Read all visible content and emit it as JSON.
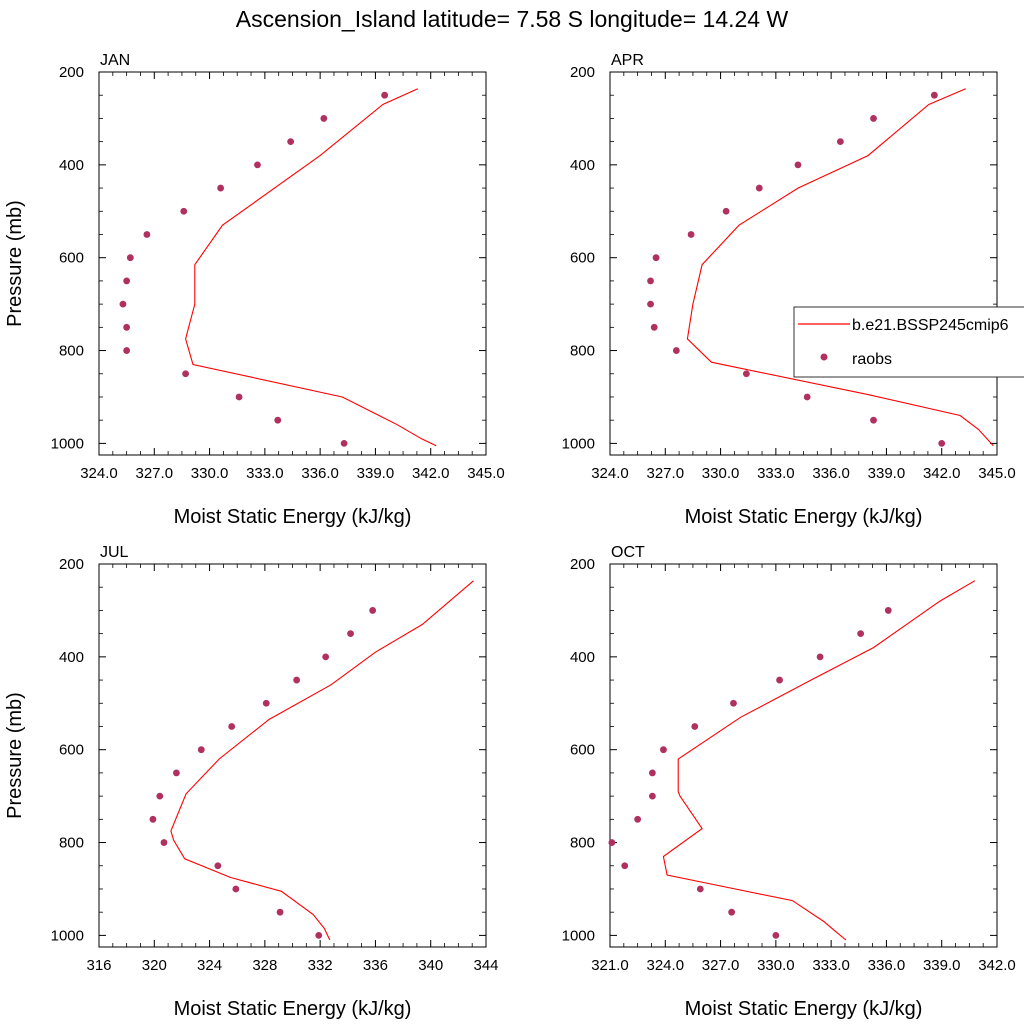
{
  "title": "Ascension_Island  latitude= 7.58 S longitude= 14.24 W",
  "colors": {
    "model": "#ff0000",
    "raobs": "#b03060",
    "axis": "#000000"
  },
  "legend": {
    "entries": [
      "b.e21.BSSP245cmip6",
      "raobs"
    ],
    "placement": "right, beside APR panel"
  },
  "chart_data": [
    {
      "type": "line",
      "panel": "JAN",
      "xlabel": "Moist Static Energy (kJ/kg)",
      "ylabel": "Pressure (mb)",
      "xlim": [
        324,
        345
      ],
      "ylim": [
        1025,
        200
      ],
      "xticks": [
        324,
        327,
        330,
        333,
        336,
        339,
        342,
        345
      ],
      "xtick_labels": [
        "324.0",
        "327.0",
        "330.0",
        "333.0",
        "336.0",
        "339.0",
        "342.0",
        "345.0"
      ],
      "yticks": [
        200,
        400,
        600,
        800,
        1000
      ],
      "series": [
        {
          "name": "b.e21.BSSP245cmip6",
          "kind": "line",
          "x": [
            341.3,
            339.4,
            336.0,
            330.7,
            329.2,
            329.2,
            328.7,
            329.1,
            337.2,
            340.2,
            341.5,
            342.3
          ],
          "y": [
            236,
            270,
            380,
            530,
            615,
            700,
            775,
            830,
            900,
            960,
            990,
            1005
          ]
        },
        {
          "name": "raobs",
          "kind": "scatter",
          "x": [
            339.5,
            336.2,
            334.4,
            332.6,
            330.6,
            328.6,
            326.6,
            325.7,
            325.5,
            325.3,
            325.5,
            325.5,
            328.7,
            331.6,
            333.7,
            337.3
          ],
          "y": [
            250,
            300,
            350,
            400,
            450,
            500,
            550,
            600,
            650,
            700,
            750,
            800,
            850,
            900,
            950,
            1000
          ]
        }
      ]
    },
    {
      "type": "line",
      "panel": "APR",
      "xlabel": "Moist Static Energy (kJ/kg)",
      "ylabel": "",
      "xlim": [
        324,
        345
      ],
      "ylim": [
        1025,
        200
      ],
      "xticks": [
        324,
        327,
        330,
        333,
        336,
        339,
        342,
        345
      ],
      "xtick_labels": [
        "324.0",
        "327.0",
        "330.0",
        "333.0",
        "336.0",
        "339.0",
        "342.0",
        "345.0"
      ],
      "yticks": [
        200,
        400,
        600,
        800,
        1000
      ],
      "series": [
        {
          "name": "b.e21.BSSP245cmip6",
          "kind": "line",
          "x": [
            343.3,
            341.3,
            338.0,
            334.2,
            331.0,
            329.0,
            328.5,
            328.2,
            329.5,
            338.0,
            343.0,
            344.0,
            344.8
          ],
          "y": [
            236,
            270,
            380,
            450,
            530,
            615,
            700,
            775,
            825,
            895,
            940,
            970,
            1005
          ]
        },
        {
          "name": "raobs",
          "kind": "scatter",
          "x": [
            341.6,
            338.3,
            336.5,
            334.2,
            332.1,
            330.3,
            328.4,
            326.5,
            326.2,
            326.2,
            326.4,
            327.6,
            331.4,
            334.7,
            338.3,
            342.0
          ],
          "y": [
            250,
            300,
            350,
            400,
            450,
            500,
            550,
            600,
            650,
            700,
            750,
            800,
            850,
            900,
            950,
            1000
          ]
        }
      ]
    },
    {
      "type": "line",
      "panel": "JUL",
      "xlabel": "Moist Static Energy (kJ/kg)",
      "ylabel": "Pressure (mb)",
      "xlim": [
        316,
        344
      ],
      "ylim": [
        1025,
        200
      ],
      "xticks": [
        316,
        320,
        324,
        328,
        332,
        336,
        340,
        344
      ],
      "xtick_labels": [
        "316",
        "320",
        "324",
        "328",
        "332",
        "336",
        "340",
        "344"
      ],
      "yticks": [
        200,
        400,
        600,
        800,
        1000
      ],
      "series": [
        {
          "name": "b.e21.BSSP245cmip6",
          "kind": "line",
          "x": [
            343.1,
            339.4,
            336.0,
            332.8,
            328.3,
            324.7,
            322.3,
            321.2,
            321.4,
            322.2,
            325.5,
            329.2,
            331.5,
            332.3,
            332.7
          ],
          "y": [
            236,
            330,
            390,
            460,
            535,
            620,
            695,
            775,
            795,
            835,
            875,
            905,
            955,
            985,
            1010
          ]
        },
        {
          "name": "raobs",
          "kind": "scatter",
          "x": [
            335.8,
            334.2,
            332.4,
            330.3,
            328.1,
            325.6,
            323.4,
            321.6,
            320.4,
            319.9,
            320.7,
            324.6,
            325.9,
            329.1,
            331.9
          ],
          "y": [
            300,
            350,
            400,
            450,
            500,
            550,
            600,
            650,
            700,
            750,
            800,
            850,
            900,
            950,
            1000
          ]
        }
      ]
    },
    {
      "type": "line",
      "panel": "OCT",
      "xlabel": "Moist Static Energy (kJ/kg)",
      "ylabel": "",
      "xlim": [
        321,
        342
      ],
      "ylim": [
        1025,
        200
      ],
      "xticks": [
        321,
        324,
        327,
        330,
        333,
        336,
        339,
        342
      ],
      "xtick_labels": [
        "321.0",
        "324.0",
        "327.0",
        "330.0",
        "333.0",
        "336.0",
        "339.0",
        "342.0"
      ],
      "yticks": [
        200,
        400,
        600,
        800,
        1000
      ],
      "series": [
        {
          "name": "b.e21.BSSP245cmip6",
          "kind": "line",
          "x": [
            340.8,
            338.9,
            335.3,
            331.9,
            328.1,
            324.7,
            324.7,
            324.8,
            326.0,
            323.9,
            324.1,
            327.8,
            330.9,
            332.6,
            333.2,
            333.8
          ],
          "y": [
            236,
            280,
            380,
            450,
            530,
            620,
            690,
            700,
            770,
            830,
            870,
            900,
            925,
            970,
            990,
            1010
          ]
        },
        {
          "name": "raobs",
          "kind": "scatter",
          "x": [
            336.1,
            334.6,
            332.4,
            330.2,
            327.7,
            325.6,
            323.9,
            323.3,
            323.3,
            322.5,
            321.1,
            321.8,
            325.9,
            327.6,
            330.0
          ],
          "y": [
            300,
            350,
            400,
            450,
            500,
            550,
            600,
            650,
            700,
            750,
            800,
            850,
            900,
            950,
            1000
          ]
        }
      ]
    }
  ]
}
